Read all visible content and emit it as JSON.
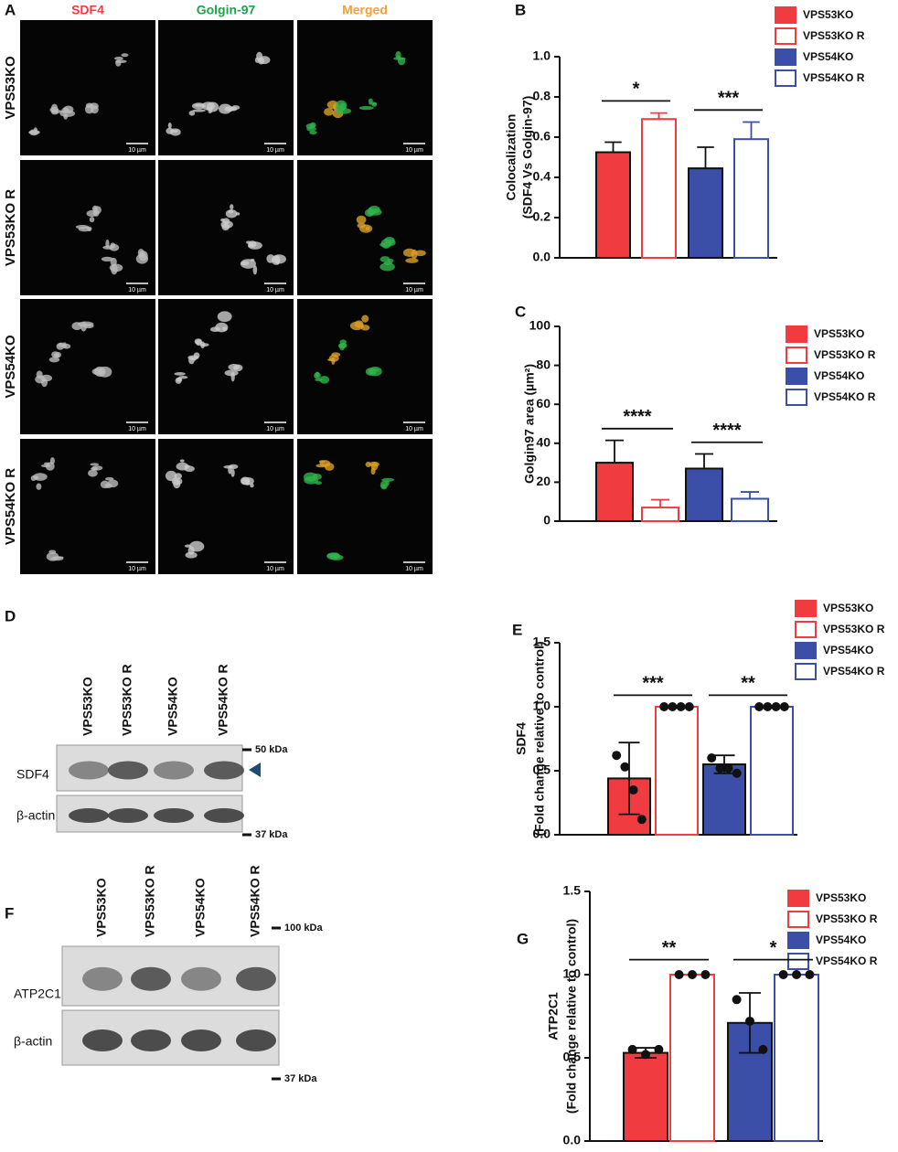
{
  "panel_labels": [
    "A",
    "B",
    "C",
    "D",
    "E",
    "F",
    "G"
  ],
  "microscopy": {
    "columns": [
      "SDF4",
      "Golgin-97",
      "Merged"
    ],
    "rows": [
      "VPS53KO",
      "VPS53KO R",
      "VPS54KO",
      "VPS54KO R"
    ],
    "scale_bar": "10 µm"
  },
  "blot_d": {
    "lanes": [
      "VPS53KO",
      "VPS53KO R",
      "VPS54KO",
      "VPS54KO R"
    ],
    "bands": [
      "SDF4",
      "β-actin"
    ],
    "markers": [
      "50 kDa",
      "37 kDa"
    ]
  },
  "blot_f": {
    "lanes": [
      "VPS53KO",
      "VPS53KO R",
      "VPS54KO",
      "VPS54KO R"
    ],
    "bands": [
      "ATP2C1",
      "β-actin"
    ],
    "markers": [
      "100 kDa",
      "37 kDa"
    ]
  },
  "chart_data": [
    {
      "type": "bar",
      "ylabel": [
        "Colocalization",
        "(SDF4 Vs Golgin-97)"
      ],
      "ylim": [
        0,
        1
      ],
      "yticks": [
        {
          "value": 0,
          "label": "0.0"
        },
        0.2,
        0.4,
        0.6,
        0.8,
        {
          "value": 1,
          "label": "1.0"
        }
      ],
      "error_both": false,
      "series": [
        {
          "name": "VPS53KO",
          "color": "#f03c41",
          "filled": true,
          "values": [
            0.525
          ],
          "errors": [
            0.05
          ]
        },
        {
          "name": "VPS53KO R",
          "color": "#f03c41",
          "filled": false,
          "values": [
            0.69
          ],
          "errors": [
            0.03
          ]
        },
        {
          "name": "VPS54KO",
          "color": "#3c4fa8",
          "filled": true,
          "values": [
            0.445
          ],
          "errors": [
            0.105
          ]
        },
        {
          "name": "VPS54KO R",
          "color": "#3c4fa8",
          "filled": false,
          "values": [
            0.59
          ],
          "errors": [
            0.085
          ]
        }
      ],
      "annotations": [
        "*",
        "***"
      ]
    },
    {
      "type": "bar",
      "ylabel": [
        "Golgin97 area (µm²)"
      ],
      "ylim": [
        0,
        100
      ],
      "yticks": [
        0,
        20,
        40,
        60,
        80,
        100
      ],
      "error_both": false,
      "series": [
        {
          "name": "VPS53KO",
          "color": "#f03c41",
          "filled": true,
          "values": [
            30
          ],
          "errors": [
            11.5
          ]
        },
        {
          "name": "VPS53KO R",
          "color": "#f03c41",
          "filled": false,
          "values": [
            7
          ],
          "errors": [
            4
          ]
        },
        {
          "name": "VPS54KO",
          "color": "#3c4fa8",
          "filled": true,
          "values": [
            27
          ],
          "errors": [
            7.5
          ]
        },
        {
          "name": "VPS54KO R",
          "color": "#3c4fa8",
          "filled": false,
          "values": [
            11.5
          ],
          "errors": [
            3.5
          ]
        }
      ],
      "annotations": [
        "****",
        "****"
      ]
    },
    {
      "type": "bar",
      "ylabel": [
        "SDF4",
        "(Fold change relative to control)"
      ],
      "ylim": [
        0,
        1.5
      ],
      "yticks": [
        {
          "value": 0,
          "label": "0.0"
        },
        0.5,
        {
          "value": 1,
          "label": "1.0"
        },
        1.5
      ],
      "error_both": true,
      "series": [
        {
          "name": "VPS53KO",
          "color": "#f03c41",
          "filled": true,
          "values": [
            0.44
          ],
          "errors": [
            0.28
          ],
          "points": [
            0.62,
            0.53,
            0.35,
            0.12
          ]
        },
        {
          "name": "VPS53KO R",
          "color": "#f03c41",
          "filled": false,
          "values": [
            1
          ],
          "errors": [
            0
          ],
          "points": [
            1,
            1,
            1,
            1
          ]
        },
        {
          "name": "VPS54KO",
          "color": "#3c4fa8",
          "filled": true,
          "values": [
            0.55
          ],
          "errors": [
            0.07
          ],
          "points": [
            0.6,
            0.52,
            0.52,
            0.48
          ]
        },
        {
          "name": "VPS54KO R",
          "color": "#3c4fa8",
          "filled": false,
          "values": [
            1
          ],
          "errors": [
            0
          ],
          "points": [
            1,
            1,
            1,
            1
          ]
        }
      ],
      "annotations": [
        "***",
        "**"
      ]
    },
    {
      "type": "bar",
      "ylabel": [
        "ATP2C1",
        "(Fold change relative to control)"
      ],
      "ylim": [
        0,
        1.5
      ],
      "yticks": [
        {
          "value": 0,
          "label": "0.0"
        },
        0.5,
        {
          "value": 1,
          "label": "1.0"
        },
        1.5
      ],
      "error_both": true,
      "series": [
        {
          "name": "VPS53KO",
          "color": "#f03c41",
          "filled": true,
          "values": [
            0.53
          ],
          "errors": [
            0.03
          ],
          "points": [
            0.55,
            0.52,
            0.55
          ]
        },
        {
          "name": "VPS53KO R",
          "color": "#f03c41",
          "filled": false,
          "values": [
            1
          ],
          "errors": [
            0
          ],
          "points": [
            1,
            1,
            1
          ]
        },
        {
          "name": "VPS54KO",
          "color": "#3c4fa8",
          "filled": true,
          "values": [
            0.71
          ],
          "errors": [
            0.18
          ],
          "points": [
            0.85,
            0.72,
            0.55
          ]
        },
        {
          "name": "VPS54KO R",
          "color": "#3c4fa8",
          "filled": false,
          "values": [
            1
          ],
          "errors": [
            0
          ],
          "points": [
            1,
            1,
            1
          ]
        }
      ],
      "annotations": [
        "**",
        "*"
      ]
    }
  ]
}
